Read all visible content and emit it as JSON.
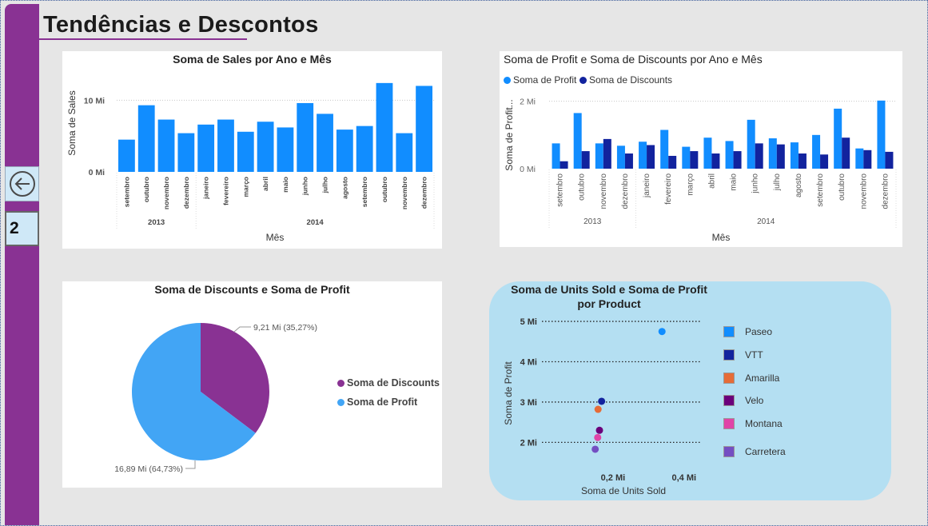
{
  "page": {
    "title": "Tendências e Descontos",
    "page_number": "2"
  },
  "colors": {
    "sidebar": "#893293",
    "sales": "#118dff",
    "profit": "#118dff",
    "discounts": "#12239e",
    "pie_profit": "#42a5f5",
    "pie_discounts": "#893293"
  },
  "nav": {
    "back_icon": "back-arrow-icon"
  },
  "charts": {
    "sales": {
      "chart_data": {
        "type": "bar",
        "title": "Soma de Sales por Ano e Mês",
        "xlabel": "Mês",
        "ylabel": "Soma de Sales",
        "ylim": [
          0,
          13.5
        ],
        "yticks": [
          "0 Mi",
          "10 Mi"
        ],
        "categories": [
          "setembro",
          "outubro",
          "novembro",
          "dezembro",
          "janeiro",
          "fevereiro",
          "março",
          "abril",
          "maio",
          "junho",
          "julho",
          "agosto",
          "setembro",
          "outubro",
          "novembro",
          "dezembro"
        ],
        "groups": [
          {
            "label": "2013",
            "count": 4
          },
          {
            "label": "2014",
            "count": 12
          }
        ],
        "values": [
          4.5,
          9.3,
          7.3,
          5.4,
          6.6,
          7.3,
          5.6,
          7.0,
          6.2,
          9.6,
          8.1,
          5.9,
          6.4,
          12.4,
          5.4,
          12.0
        ]
      }
    },
    "profit_discounts": {
      "chart_data": {
        "type": "bar",
        "title": "Soma de Profit e Soma de Discounts por Ano e Mês",
        "xlabel": "Mês",
        "ylabel": "Soma de Profit...",
        "ylim": [
          0,
          2.3
        ],
        "yticks": [
          "0 Mi",
          "2 Mi"
        ],
        "categories": [
          "setembro",
          "outubro",
          "novembro",
          "dezembro",
          "janeiro",
          "fevereiro",
          "março",
          "abril",
          "maio",
          "junho",
          "julho",
          "agosto",
          "setembro",
          "outubro",
          "novembro",
          "dezembro"
        ],
        "groups": [
          {
            "label": "2013",
            "count": 4
          },
          {
            "label": "2014",
            "count": 12
          }
        ],
        "legend_position": "top-left",
        "series": [
          {
            "name": "Soma de Profit",
            "values": [
              0.75,
              1.65,
              0.75,
              0.68,
              0.8,
              1.15,
              0.65,
              0.92,
              0.82,
              1.45,
              0.9,
              0.78,
              1.0,
              1.78,
              0.6,
              2.02
            ]
          },
          {
            "name": "Soma de Discounts",
            "values": [
              0.22,
              0.52,
              0.88,
              0.45,
              0.7,
              0.38,
              0.52,
              0.45,
              0.52,
              0.75,
              0.72,
              0.45,
              0.42,
              0.92,
              0.55,
              0.5
            ]
          }
        ]
      }
    },
    "pie": {
      "chart_data": {
        "type": "pie",
        "title": "Soma de Discounts e Soma de Profit",
        "legend_position": "right",
        "slices": [
          {
            "name": "Soma de Discounts",
            "value": 9.21,
            "label": "9,21 Mi (35,27%)"
          },
          {
            "name": "Soma de Profit",
            "value": 16.89,
            "label": "16,89 Mi (64,73%)"
          }
        ]
      }
    },
    "scatter": {
      "chart_data": {
        "type": "scatter",
        "title_line1": "Soma de Units Sold e Soma de Profit",
        "title_line2": "por Product",
        "xlabel": "Soma de Units Sold",
        "ylabel": "Soma de Profit",
        "xlim": [
          0,
          0.45
        ],
        "ylim": [
          1.75,
          5.2
        ],
        "xticks": [
          "0,2 Mi",
          "0,4 Mi"
        ],
        "yticks": [
          "2 Mi",
          "3 Mi",
          "4 Mi",
          "5 Mi"
        ],
        "legend_position": "right",
        "points": [
          {
            "name": "Paseo",
            "x": 0.338,
            "y": 4.75,
            "color": "#118dff"
          },
          {
            "name": "VTT",
            "x": 0.168,
            "y": 3.02,
            "color": "#12239e"
          },
          {
            "name": "Amarilla",
            "x": 0.158,
            "y": 2.82,
            "color": "#e66c37"
          },
          {
            "name": "Velo",
            "x": 0.162,
            "y": 2.3,
            "color": "#6b007b"
          },
          {
            "name": "Montana",
            "x": 0.157,
            "y": 2.12,
            "color": "#e044a7"
          },
          {
            "name": "Carretera",
            "x": 0.15,
            "y": 1.83,
            "color": "#744ec2"
          }
        ]
      }
    }
  }
}
